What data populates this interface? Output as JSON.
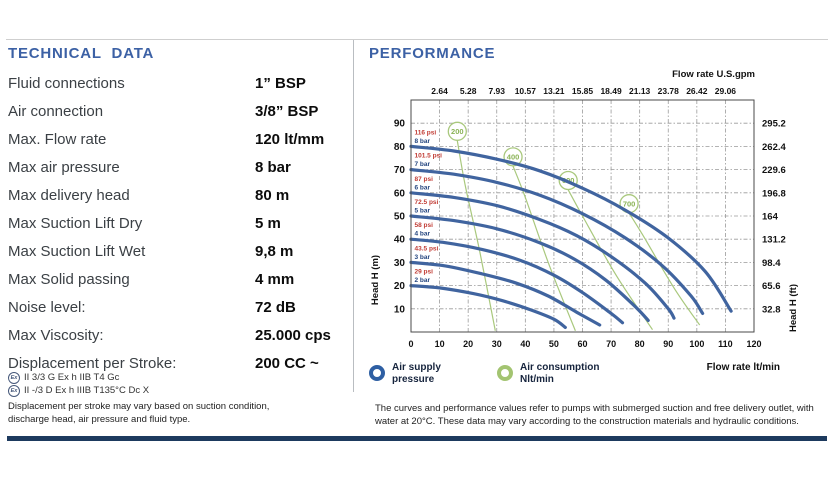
{
  "technical_data": {
    "title": "TECHNICAL DATA",
    "rows": [
      {
        "label": "Fluid connections",
        "value": "1” BSP"
      },
      {
        "label": "Air connection",
        "value": "3/8” BSP"
      },
      {
        "label": "Max. Flow rate",
        "value": "120 lt/mm"
      },
      {
        "label": "Max air pressure",
        "value": "8 bar"
      },
      {
        "label": "Max delivery head",
        "value": "80 m"
      },
      {
        "label": "Max Suction Lift Dry",
        "value": "5 m"
      },
      {
        "label": "Max Suction Lift Wet",
        "value": "9,8 m"
      },
      {
        "label": "Max Solid passing",
        "value": "4 mm"
      },
      {
        "label": "Noise level:",
        "value": "72 dB"
      },
      {
        "label": "Max Viscosity:",
        "value": "25.000 cps"
      },
      {
        "label": "Displacement per Stroke:",
        "value": "200 CC ~"
      }
    ],
    "atex_lines": [
      {
        "symbol": "Ex",
        "text": "II 3/3 G Ex h IIB T4 Gc"
      },
      {
        "symbol": "Ex",
        "text": "II -/3 D Ex h IIIB T135°C Dc X"
      }
    ],
    "footnote": "Displacement per stroke may vary based on suction condition, discharge head, air pressure and fluid type."
  },
  "performance": {
    "title": "PERFORMANCE",
    "legend": {
      "air_supply": {
        "line1": "Air supply",
        "line2": "pressure"
      },
      "air_consumption": {
        "line1": "Air consumption",
        "line2": "Nlt/min"
      }
    },
    "footnote": "The curves and performance values refer to pumps with submerged suction and free delivery outlet, with water at 20°C. These data may vary according to the construction materials and hydraulic conditions."
  },
  "chart_data": {
    "type": "line",
    "x_axis": {
      "label_top": "Flow rate U.S.gpm",
      "label_bottom": "Flow rate  lt/min",
      "ticks_bottom": [
        0,
        10,
        20,
        30,
        40,
        50,
        60,
        70,
        80,
        90,
        100,
        110,
        120
      ],
      "ticks_top_gpm": [
        "2.64",
        "5.28",
        "7.93",
        "10.57",
        "13.21",
        "15.85",
        "18.49",
        "21.13",
        "23.78",
        "26.42",
        "29.06"
      ],
      "xlim": [
        0,
        120
      ]
    },
    "y_axis": {
      "label_left": "Head H (m)",
      "label_right": "Head H (ft)",
      "ticks_left_m": [
        10,
        20,
        30,
        40,
        50,
        60,
        70,
        80,
        90
      ],
      "ticks_right_ft": [
        "295.2",
        "262.4",
        "229.6",
        "196.8",
        "164",
        "131.2",
        "98.4",
        "65.6",
        "32.8"
      ],
      "ylim": [
        0,
        100
      ]
    },
    "grid": "dash-dot gray, 10 lt/min × 10 m spacing",
    "legend_position": "below chart",
    "series": [
      {
        "name": "8 bar",
        "psi_label": "116 psi",
        "bar_label": "8 bar",
        "points": [
          [
            0,
            80
          ],
          [
            15,
            78
          ],
          [
            30,
            74.5
          ],
          [
            45,
            69.5
          ],
          [
            60,
            62
          ],
          [
            75,
            52.5
          ],
          [
            90,
            40.5
          ],
          [
            103,
            26
          ],
          [
            112,
            9
          ]
        ]
      },
      {
        "name": "7 bar",
        "psi_label": "101.5 psi",
        "bar_label": "7 bar",
        "points": [
          [
            0,
            70
          ],
          [
            15,
            68
          ],
          [
            30,
            64.5
          ],
          [
            45,
            59
          ],
          [
            60,
            51
          ],
          [
            75,
            40.5
          ],
          [
            88,
            28.5
          ],
          [
            98,
            15.5
          ],
          [
            102,
            8
          ]
        ]
      },
      {
        "name": "6 bar",
        "psi_label": "87 psi",
        "bar_label": "6 bar",
        "points": [
          [
            0,
            60
          ],
          [
            15,
            58
          ],
          [
            30,
            54.5
          ],
          [
            45,
            48.5
          ],
          [
            58,
            41.5
          ],
          [
            70,
            32.5
          ],
          [
            82,
            21
          ],
          [
            90,
            10
          ],
          [
            92,
            6
          ]
        ]
      },
      {
        "name": "5 bar",
        "psi_label": "72.5 psi",
        "bar_label": "5 bar",
        "points": [
          [
            0,
            50
          ],
          [
            15,
            48
          ],
          [
            30,
            44.5
          ],
          [
            45,
            38.5
          ],
          [
            57,
            31.5
          ],
          [
            68,
            22.5
          ],
          [
            78,
            11.5
          ],
          [
            83,
            5
          ]
        ]
      },
      {
        "name": "4 bar",
        "psi_label": "58 psi",
        "bar_label": "4 bar",
        "points": [
          [
            0,
            40
          ],
          [
            12,
            38.5
          ],
          [
            25,
            35.5
          ],
          [
            38,
            31
          ],
          [
            50,
            24.5
          ],
          [
            60,
            17
          ],
          [
            70,
            8
          ],
          [
            74,
            4
          ]
        ]
      },
      {
        "name": "3 bar",
        "psi_label": "43.5 psi",
        "bar_label": "3 bar",
        "points": [
          [
            0,
            30
          ],
          [
            12,
            28.5
          ],
          [
            25,
            25
          ],
          [
            37,
            21
          ],
          [
            48,
            15.5
          ],
          [
            58,
            8.5
          ],
          [
            66,
            3
          ]
        ]
      },
      {
        "name": "2 bar",
        "psi_label": "29 psi",
        "bar_label": "2 bar",
        "points": [
          [
            0,
            20
          ],
          [
            10,
            19
          ],
          [
            22,
            16.5
          ],
          [
            32,
            13.5
          ],
          [
            42,
            9.5
          ],
          [
            50,
            5.5
          ],
          [
            54,
            2
          ]
        ]
      }
    ],
    "air_consumption": [
      {
        "label": "200",
        "circle": [
          16.2,
          86.5
        ],
        "points": [
          [
            16.2,
            82.5
          ],
          [
            19,
            63
          ],
          [
            24,
            35
          ],
          [
            29.5,
            0.5
          ]
        ]
      },
      {
        "label": "400",
        "circle": [
          35.7,
          75.5
        ],
        "points": [
          [
            35.7,
            71.5
          ],
          [
            40,
            58
          ],
          [
            48,
            30
          ],
          [
            57.5,
            0.5
          ]
        ]
      },
      {
        "label": "600",
        "circle": [
          55,
          65.3
        ],
        "points": [
          [
            55,
            61.3
          ],
          [
            60,
            50
          ],
          [
            72,
            24
          ],
          [
            84.5,
            1
          ]
        ]
      },
      {
        "label": "700",
        "circle": [
          76.3,
          55.3
        ],
        "points": [
          [
            76.3,
            51.3
          ],
          [
            81,
            42
          ],
          [
            92,
            19
          ],
          [
            101,
            3
          ]
        ]
      }
    ],
    "colors": {
      "curve_blue": "#40649f",
      "air_green": "#a9c87d",
      "psi_red": "#c13b33",
      "bar_navy": "#24457f",
      "grid_gray": "#9a9a9a",
      "border": "#4a4a4a",
      "heading_blue": "#3c61a5",
      "navy_bar": "#1d3a5e"
    }
  }
}
